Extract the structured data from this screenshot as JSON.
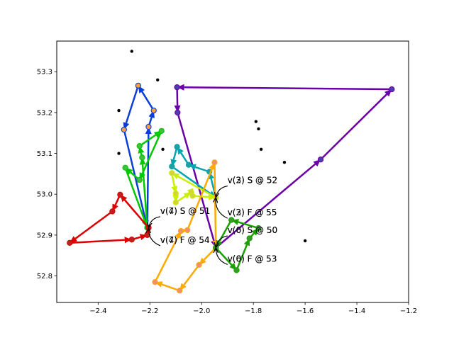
{
  "chart_data": {
    "type": "scatter",
    "title": "",
    "xlabel": "",
    "ylabel": "",
    "xlim": [
      -2.56,
      -1.2
    ],
    "ylim": [
      52.735,
      53.375
    ],
    "grid": false,
    "x_ticks": [
      {
        "value": -2.4,
        "label": "−2.4"
      },
      {
        "value": -2.2,
        "label": "−2.2"
      },
      {
        "value": -2.0,
        "label": "−2.0"
      },
      {
        "value": -1.8,
        "label": "−1.8"
      },
      {
        "value": -1.6,
        "label": "−1.6"
      },
      {
        "value": -1.4,
        "label": "−1.4"
      },
      {
        "value": -1.2,
        "label": "−1.2"
      }
    ],
    "y_ticks": [
      {
        "value": 52.8,
        "label": "52.8"
      },
      {
        "value": 52.9,
        "label": "52.9"
      },
      {
        "value": 53.0,
        "label": "53.0"
      },
      {
        "value": 53.1,
        "label": "53.1"
      },
      {
        "value": 53.2,
        "label": "53.2"
      },
      {
        "value": 53.3,
        "label": "53.3"
      }
    ],
    "background_points": [
      [
        -2.27,
        53.35
      ],
      [
        -2.17,
        53.28
      ],
      [
        -2.32,
        53.205
      ],
      [
        -2.32,
        53.1
      ],
      [
        -2.15,
        53.11
      ],
      [
        -1.79,
        53.178
      ],
      [
        -1.78,
        53.16
      ],
      [
        -1.77,
        53.11
      ],
      [
        -1.68,
        53.078
      ],
      [
        -1.6,
        52.886
      ]
    ],
    "routes": [
      {
        "color": "#6a00a8",
        "node_color": "#4b3fae",
        "points": [
          [
            -1.945,
            52.869
          ],
          [
            -1.54,
            53.085
          ],
          [
            -1.265,
            53.257
          ],
          [
            -2.095,
            53.262
          ],
          [
            -2.093,
            53.2
          ],
          [
            -1.945,
            52.869
          ]
        ]
      },
      {
        "color": "#0a3fd6",
        "node_color": "#f0a040",
        "points": [
          [
            -2.21,
            52.918
          ],
          [
            -2.205,
            53.165
          ],
          [
            -2.185,
            53.205
          ],
          [
            -2.245,
            53.266
          ],
          [
            -2.3,
            53.158
          ],
          [
            -2.21,
            52.918
          ]
        ]
      },
      {
        "color": "#00c800",
        "node_color": "#40c040",
        "points": [
          [
            -2.21,
            52.918
          ],
          [
            -2.23,
            53.09
          ],
          [
            -2.24,
            53.118
          ],
          [
            -2.155,
            53.155
          ],
          [
            -2.24,
            53.035
          ],
          [
            -2.295,
            53.065
          ],
          [
            -2.21,
            52.918
          ]
        ]
      },
      {
        "color": "#00a5b0",
        "node_color": "#20a0a0",
        "points": [
          [
            -1.945,
            52.992
          ],
          [
            -1.97,
            53.055
          ],
          [
            -2.05,
            53.072
          ],
          [
            -2.095,
            53.116
          ],
          [
            -2.115,
            53.068
          ],
          [
            -1.945,
            52.992
          ]
        ]
      },
      {
        "color": "#c8f000",
        "node_color": "#d8d040",
        "points": [
          [
            -1.945,
            52.992
          ],
          [
            -2.115,
            53.052
          ],
          [
            -2.1,
            53.002
          ],
          [
            -2.1,
            52.98
          ],
          [
            -2.04,
            53.005
          ],
          [
            -2.035,
            52.996
          ],
          [
            -1.945,
            52.992
          ]
        ]
      },
      {
        "color": "#dd0000",
        "node_color": "#c02020",
        "points": [
          [
            -2.205,
            52.918
          ],
          [
            -2.315,
            52.999
          ],
          [
            -2.345,
            52.958
          ],
          [
            -2.51,
            52.881
          ],
          [
            -2.27,
            52.889
          ],
          [
            -2.21,
            52.9
          ],
          [
            -2.205,
            52.918
          ]
        ]
      },
      {
        "color": "#ffaa00",
        "node_color": "#f09070",
        "points": [
          [
            -1.945,
            52.869
          ],
          [
            -2.01,
            52.827
          ],
          [
            -2.085,
            52.764
          ],
          [
            -2.18,
            52.785
          ],
          [
            -2.08,
            52.91
          ],
          [
            -2.055,
            52.912
          ],
          [
            -1.95,
            53.078
          ],
          [
            -1.945,
            52.869
          ]
        ]
      },
      {
        "color": "#1aa000",
        "node_color": "#3a9a30",
        "points": [
          [
            -1.945,
            52.869
          ],
          [
            -1.865,
            52.814
          ],
          [
            -1.815,
            52.892
          ],
          [
            -1.78,
            52.917
          ],
          [
            -1.885,
            52.937
          ],
          [
            -1.945,
            52.869
          ]
        ]
      }
    ],
    "annotations": [
      {
        "label": "v(3) S @ 52",
        "text": [
          -1.9,
          53.02
        ],
        "target": [
          -1.945,
          52.992
        ],
        "rad": 0.35
      },
      {
        "label": "v(2) S @ 52",
        "text": [
          -1.9,
          53.02
        ],
        "target": [
          -1.945,
          52.992
        ],
        "rad": 0.35
      },
      {
        "label": "v(2) F @ 55",
        "text": [
          -1.9,
          52.941
        ],
        "target": [
          -1.945,
          52.992
        ],
        "rad": -0.35
      },
      {
        "label": "v(3) F @ 55",
        "text": [
          -1.9,
          52.941
        ],
        "target": [
          -1.945,
          52.992
        ],
        "rad": -0.35
      },
      {
        "label": "v(7) S @ 51",
        "text": [
          -2.16,
          52.945
        ],
        "target": [
          -2.205,
          52.918
        ],
        "rad": 0.35
      },
      {
        "label": "v(4) S @ 51",
        "text": [
          -2.16,
          52.945
        ],
        "target": [
          -2.205,
          52.918
        ],
        "rad": 0.35
      },
      {
        "label": "v(6) S @ 50",
        "text": [
          -1.9,
          52.898
        ],
        "target": [
          -1.945,
          52.869
        ],
        "rad": 0.35
      },
      {
        "label": "v(0) S @ 50",
        "text": [
          -1.9,
          52.898
        ],
        "target": [
          -1.945,
          52.869
        ],
        "rad": 0.35
      },
      {
        "label": "v(7) F @ 54",
        "text": [
          -2.16,
          52.874
        ],
        "target": [
          -2.205,
          52.918
        ],
        "rad": -0.35
      },
      {
        "label": "v(4) F @ 54",
        "text": [
          -2.16,
          52.874
        ],
        "target": [
          -2.205,
          52.918
        ],
        "rad": -0.35
      },
      {
        "label": "v(6) F @ 53",
        "text": [
          -1.9,
          52.828
        ],
        "target": [
          -1.945,
          52.869
        ],
        "rad": -0.35
      },
      {
        "label": "v(0) F @ 53",
        "text": [
          -1.9,
          52.828
        ],
        "target": [
          -1.945,
          52.869
        ],
        "rad": -0.35
      }
    ]
  }
}
